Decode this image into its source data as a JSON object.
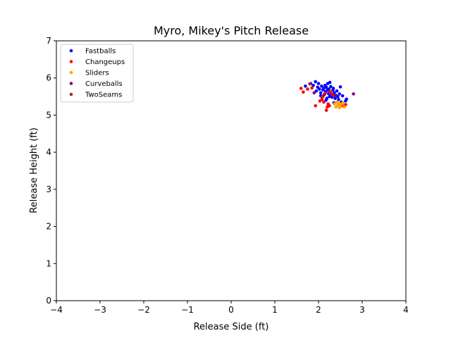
{
  "chart_data": {
    "type": "scatter",
    "title": "Myro, Mikey's Pitch Release",
    "xlabel": "Release Side (ft)",
    "ylabel": "Release Height (ft)",
    "xlim": [
      -4,
      4
    ],
    "ylim": [
      0,
      7
    ],
    "xticks": [
      -4,
      -3,
      -2,
      -1,
      0,
      1,
      2,
      3,
      4
    ],
    "yticks": [
      0,
      1,
      2,
      3,
      4,
      5,
      6,
      7
    ],
    "grid": false,
    "legend_position": "top-left",
    "series": [
      {
        "name": "Fastballs",
        "color": "#0000ff",
        "points": [
          [
            1.7,
            5.78
          ],
          [
            1.82,
            5.85
          ],
          [
            1.88,
            5.8
          ],
          [
            1.93,
            5.9
          ],
          [
            1.95,
            5.65
          ],
          [
            1.98,
            5.75
          ],
          [
            2.0,
            5.85
          ],
          [
            2.02,
            5.7
          ],
          [
            2.05,
            5.6
          ],
          [
            2.07,
            5.78
          ],
          [
            2.08,
            5.5
          ],
          [
            2.1,
            5.68
          ],
          [
            2.12,
            5.72
          ],
          [
            2.13,
            5.55
          ],
          [
            2.15,
            5.8
          ],
          [
            2.16,
            5.63
          ],
          [
            2.18,
            5.75
          ],
          [
            2.19,
            5.45
          ],
          [
            2.2,
            5.67
          ],
          [
            2.21,
            5.85
          ],
          [
            2.23,
            5.58
          ],
          [
            2.24,
            5.7
          ],
          [
            2.25,
            5.5
          ],
          [
            2.27,
            5.62
          ],
          [
            2.28,
            5.77
          ],
          [
            2.3,
            5.55
          ],
          [
            2.31,
            5.48
          ],
          [
            2.33,
            5.68
          ],
          [
            2.34,
            5.72
          ],
          [
            2.36,
            5.6
          ],
          [
            2.38,
            5.45
          ],
          [
            2.4,
            5.53
          ],
          [
            2.42,
            5.65
          ],
          [
            2.44,
            5.5
          ],
          [
            2.46,
            5.42
          ],
          [
            2.48,
            5.57
          ],
          [
            2.5,
            5.76
          ],
          [
            2.52,
            5.35
          ],
          [
            2.55,
            5.52
          ],
          [
            2.62,
            5.38
          ],
          [
            2.64,
            5.43
          ],
          [
            2.26,
            5.88
          ],
          [
            2.05,
            5.52
          ],
          [
            2.17,
            5.4
          ],
          [
            2.35,
            5.33
          ]
        ]
      },
      {
        "name": "Changeups",
        "color": "#ff0000",
        "points": [
          [
            1.6,
            5.72
          ],
          [
            1.65,
            5.62
          ],
          [
            1.75,
            5.7
          ],
          [
            1.85,
            5.73
          ],
          [
            1.93,
            5.25
          ],
          [
            2.03,
            5.38
          ],
          [
            2.08,
            5.42
          ],
          [
            2.12,
            5.35
          ],
          [
            2.18,
            5.13
          ],
          [
            2.2,
            5.22
          ],
          [
            2.22,
            5.3
          ],
          [
            2.25,
            5.25
          ],
          [
            2.28,
            5.62
          ],
          [
            2.32,
            5.55
          ],
          [
            2.15,
            5.58
          ],
          [
            2.48,
            5.3
          ],
          [
            2.55,
            5.25
          ],
          [
            2.62,
            5.28
          ],
          [
            2.1,
            5.5
          ]
        ]
      },
      {
        "name": "Sliders",
        "color": "#ffa500",
        "points": [
          [
            2.36,
            5.3
          ],
          [
            2.4,
            5.22
          ],
          [
            2.44,
            5.27
          ],
          [
            2.47,
            5.32
          ],
          [
            2.5,
            5.24
          ],
          [
            2.53,
            5.3
          ],
          [
            2.56,
            5.33
          ],
          [
            2.59,
            5.22
          ],
          [
            2.42,
            5.35
          ],
          [
            2.48,
            5.2
          ]
        ]
      },
      {
        "name": "Curveballs",
        "color": "#800080",
        "points": [
          [
            1.9,
            5.6
          ],
          [
            2.8,
            5.57
          ],
          [
            2.38,
            5.52
          ]
        ]
      },
      {
        "name": "TwoSeams",
        "color": "#a52a2a",
        "points": [
          [
            1.8,
            5.84
          ],
          [
            2.08,
            5.48
          ],
          [
            2.25,
            5.63
          ]
        ]
      }
    ]
  }
}
